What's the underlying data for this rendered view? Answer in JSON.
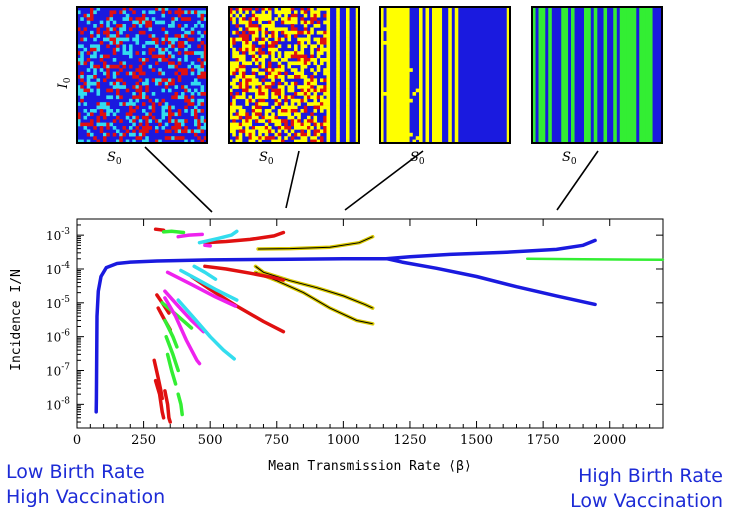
{
  "colors": {
    "blue": "#1a1adf",
    "red": "#e01010",
    "cyan": "#33ddee",
    "yellow": "#ffff00",
    "green": "#33ee33",
    "magenta": "#ee22ee",
    "gold": "#d8c800",
    "text_blue": "#1d2bd6"
  },
  "panels": [
    {
      "id": "p1",
      "ylabel": "I",
      "ylabel_sub": "0",
      "xlabel": "S",
      "xlabel_sub": "0",
      "palette": [
        "blue",
        "red",
        "cyan"
      ]
    },
    {
      "id": "p2",
      "ylabel": "",
      "ylabel_sub": "",
      "xlabel": "S",
      "xlabel_sub": "0",
      "palette": [
        "yellow",
        "red",
        "blue"
      ]
    },
    {
      "id": "p3",
      "ylabel": "",
      "ylabel_sub": "",
      "xlabel": "S",
      "xlabel_sub": "0",
      "palette": [
        "yellow",
        "blue"
      ]
    },
    {
      "id": "p4",
      "ylabel": "",
      "ylabel_sub": "",
      "xlabel": "S",
      "xlabel_sub": "0",
      "palette": [
        "green",
        "blue"
      ]
    }
  ],
  "chart_data": {
    "type": "line",
    "xlabel": "Mean Transmission Rate ⟨β⟩",
    "ylabel": "Incidence I/N",
    "xlim": [
      0,
      2200
    ],
    "y_scale": "log",
    "ylim": [
      2e-09,
      0.003
    ],
    "x_ticks": [
      0,
      250,
      500,
      750,
      1000,
      1250,
      1500,
      1750,
      2000
    ],
    "y_ticks": [
      {
        "base": "10",
        "exp": "-3",
        "value": 0.001
      },
      {
        "base": "10",
        "exp": "-4",
        "value": 0.0001
      },
      {
        "base": "10",
        "exp": "-5",
        "value": 1e-05
      },
      {
        "base": "10",
        "exp": "-6",
        "value": 1e-06
      },
      {
        "base": "10",
        "exp": "-7",
        "value": 1e-07
      },
      {
        "base": "10",
        "exp": "-8",
        "value": 1e-08
      }
    ],
    "series": [
      {
        "color": "blue",
        "width": 3.5,
        "points": [
          [
            72,
            6e-09
          ],
          [
            73,
            1.5e-08
          ],
          [
            75,
            4e-06
          ],
          [
            80,
            2.2e-05
          ],
          [
            90,
            6e-05
          ],
          [
            110,
            0.00011
          ],
          [
            150,
            0.000145
          ],
          [
            200,
            0.00016
          ],
          [
            300,
            0.000172
          ],
          [
            500,
            0.000185
          ],
          [
            800,
            0.000195
          ],
          [
            1000,
            0.0002
          ],
          [
            1160,
            0.0002
          ]
        ]
      },
      {
        "color": "blue",
        "width": 3.5,
        "points": [
          [
            1160,
            0.0002
          ],
          [
            1250,
            0.00023
          ],
          [
            1400,
            0.00027
          ],
          [
            1600,
            0.00031
          ],
          [
            1800,
            0.00038
          ],
          [
            1900,
            0.0005
          ],
          [
            1945,
            0.0007
          ]
        ]
      },
      {
        "color": "blue",
        "width": 3.5,
        "points": [
          [
            1165,
            0.0002
          ],
          [
            1220,
            0.00016
          ],
          [
            1350,
            0.000105
          ],
          [
            1500,
            6e-05
          ],
          [
            1650,
            3e-05
          ],
          [
            1800,
            1.6e-05
          ],
          [
            1945,
            9e-06
          ]
        ]
      },
      {
        "color": "green",
        "width": 2.5,
        "points": [
          [
            1690,
            0.0002
          ],
          [
            1900,
            0.000195
          ],
          [
            2100,
            0.00019
          ],
          [
            2200,
            0.000188
          ]
        ]
      },
      {
        "color": "gold",
        "width": 3.5,
        "points": [
          [
            680,
            0.00039
          ],
          [
            800,
            0.0004
          ],
          [
            950,
            0.00044
          ],
          [
            1060,
            0.0006
          ],
          [
            1110,
            0.0009
          ]
        ]
      },
      {
        "color": "gold",
        "width": 3.5,
        "points": [
          [
            670,
            0.00012
          ],
          [
            700,
            8e-05
          ],
          [
            800,
            4.5e-05
          ],
          [
            900,
            2.8e-05
          ],
          [
            1000,
            1.6e-05
          ],
          [
            1080,
            9e-06
          ],
          [
            1110,
            7e-06
          ]
        ]
      },
      {
        "color": "gold",
        "width": 3.5,
        "points": [
          [
            670,
            8e-05
          ],
          [
            750,
            4.5e-05
          ],
          [
            850,
            2e-05
          ],
          [
            950,
            7e-06
          ],
          [
            1050,
            3e-06
          ],
          [
            1110,
            2.4e-06
          ]
        ]
      },
      {
        "color": "red",
        "width": 3.5,
        "points": [
          [
            295,
            0.0015
          ],
          [
            325,
            0.0014
          ]
        ]
      },
      {
        "color": "red",
        "width": 3.5,
        "points": [
          [
            480,
            0.0006
          ],
          [
            560,
            0.00065
          ],
          [
            650,
            0.00075
          ],
          [
            740,
            0.00095
          ],
          [
            775,
            0.0012
          ]
        ]
      },
      {
        "color": "red",
        "width": 3.5,
        "points": [
          [
            480,
            0.00012
          ],
          [
            560,
            0.0001
          ],
          [
            650,
            7.5e-05
          ],
          [
            740,
            5.5e-05
          ],
          [
            775,
            4.7e-05
          ]
        ]
      },
      {
        "color": "red",
        "width": 3.5,
        "points": [
          [
            430,
            6e-05
          ],
          [
            500,
            2.5e-05
          ],
          [
            600,
            8e-06
          ],
          [
            700,
            2.8e-06
          ],
          [
            775,
            1.4e-06
          ]
        ]
      },
      {
        "color": "red",
        "width": 3.5,
        "points": [
          [
            300,
            1.7e-05
          ],
          [
            320,
            1e-05
          ],
          [
            345,
            5e-06
          ]
        ]
      },
      {
        "color": "red",
        "width": 3.5,
        "points": [
          [
            305,
            7e-06
          ],
          [
            330,
            3e-06
          ],
          [
            350,
            1.6e-06
          ]
        ]
      },
      {
        "color": "red",
        "width": 3.5,
        "points": [
          [
            290,
            2e-07
          ],
          [
            305,
            6e-08
          ],
          [
            315,
            2.5e-08
          ],
          [
            320,
            1.5e-08
          ]
        ]
      },
      {
        "color": "red",
        "width": 3.5,
        "points": [
          [
            295,
            5e-08
          ],
          [
            310,
            2e-08
          ],
          [
            320,
            6e-09
          ],
          [
            325,
            4e-09
          ]
        ]
      },
      {
        "color": "red",
        "width": 3.5,
        "points": [
          [
            330,
            2.5e-08
          ],
          [
            340,
            1e-08
          ],
          [
            345,
            4e-09
          ],
          [
            350,
            3e-09
          ]
        ]
      },
      {
        "color": "green",
        "width": 3.5,
        "points": [
          [
            325,
            0.00125
          ],
          [
            355,
            0.0013
          ],
          [
            400,
            0.0012
          ]
        ]
      },
      {
        "color": "green",
        "width": 3.5,
        "points": [
          [
            320,
            1e-05
          ],
          [
            380,
            4e-06
          ],
          [
            430,
            1.8e-06
          ]
        ]
      },
      {
        "color": "green",
        "width": 3.5,
        "points": [
          [
            330,
            3e-06
          ],
          [
            360,
            1e-06
          ],
          [
            375,
            5e-07
          ]
        ]
      },
      {
        "color": "green",
        "width": 3.5,
        "points": [
          [
            335,
            1e-06
          ],
          [
            360,
            3e-07
          ],
          [
            380,
            1e-07
          ]
        ]
      },
      {
        "color": "green",
        "width": 3.5,
        "points": [
          [
            340,
            3e-07
          ],
          [
            355,
            1e-07
          ],
          [
            370,
            4e-08
          ]
        ]
      },
      {
        "color": "green",
        "width": 3.5,
        "points": [
          [
            380,
            2e-08
          ],
          [
            390,
            1e-08
          ],
          [
            395,
            5e-09
          ]
        ]
      },
      {
        "color": "magenta",
        "width": 3.5,
        "points": [
          [
            380,
            0.0009
          ],
          [
            420,
            0.001
          ],
          [
            470,
            0.00105
          ]
        ]
      },
      {
        "color": "magenta",
        "width": 3.5,
        "points": [
          [
            480,
            0.0005
          ],
          [
            500,
            0.00048
          ]
        ]
      },
      {
        "color": "magenta",
        "width": 3.5,
        "points": [
          [
            340,
            8e-05
          ],
          [
            430,
            3.5e-05
          ],
          [
            520,
            1.5e-05
          ],
          [
            595,
            8e-06
          ]
        ]
      },
      {
        "color": "magenta",
        "width": 3.5,
        "points": [
          [
            330,
            2.2e-05
          ],
          [
            380,
            8e-06
          ],
          [
            430,
            3e-06
          ],
          [
            475,
            1.4e-06
          ]
        ]
      },
      {
        "color": "magenta",
        "width": 3.5,
        "points": [
          [
            330,
            1.4e-05
          ],
          [
            370,
            4e-06
          ],
          [
            410,
            8e-07
          ],
          [
            450,
            2e-07
          ],
          [
            460,
            1.6e-07
          ]
        ]
      },
      {
        "color": "cyan",
        "width": 3.5,
        "points": [
          [
            460,
            0.0006
          ],
          [
            530,
            0.0008
          ],
          [
            580,
            0.001
          ],
          [
            600,
            0.0013
          ]
        ]
      },
      {
        "color": "cyan",
        "width": 3.5,
        "points": [
          [
            390,
            9e-05
          ],
          [
            450,
            5e-05
          ],
          [
            520,
            2.5e-05
          ],
          [
            600,
            1.2e-05
          ]
        ]
      },
      {
        "color": "cyan",
        "width": 3.5,
        "points": [
          [
            440,
            0.00012
          ],
          [
            480,
            8e-05
          ],
          [
            520,
            5e-05
          ]
        ]
      },
      {
        "color": "cyan",
        "width": 3.5,
        "points": [
          [
            380,
            1.2e-05
          ],
          [
            440,
            3.5e-06
          ],
          [
            500,
            1e-06
          ],
          [
            550,
            4e-07
          ],
          [
            590,
            2.2e-07
          ]
        ]
      }
    ]
  },
  "labels": {
    "left_line1": "Low Birth Rate",
    "left_line2": "High Vaccination",
    "right_line1": "High Birth Rate",
    "right_line2": "Low Vaccination"
  }
}
